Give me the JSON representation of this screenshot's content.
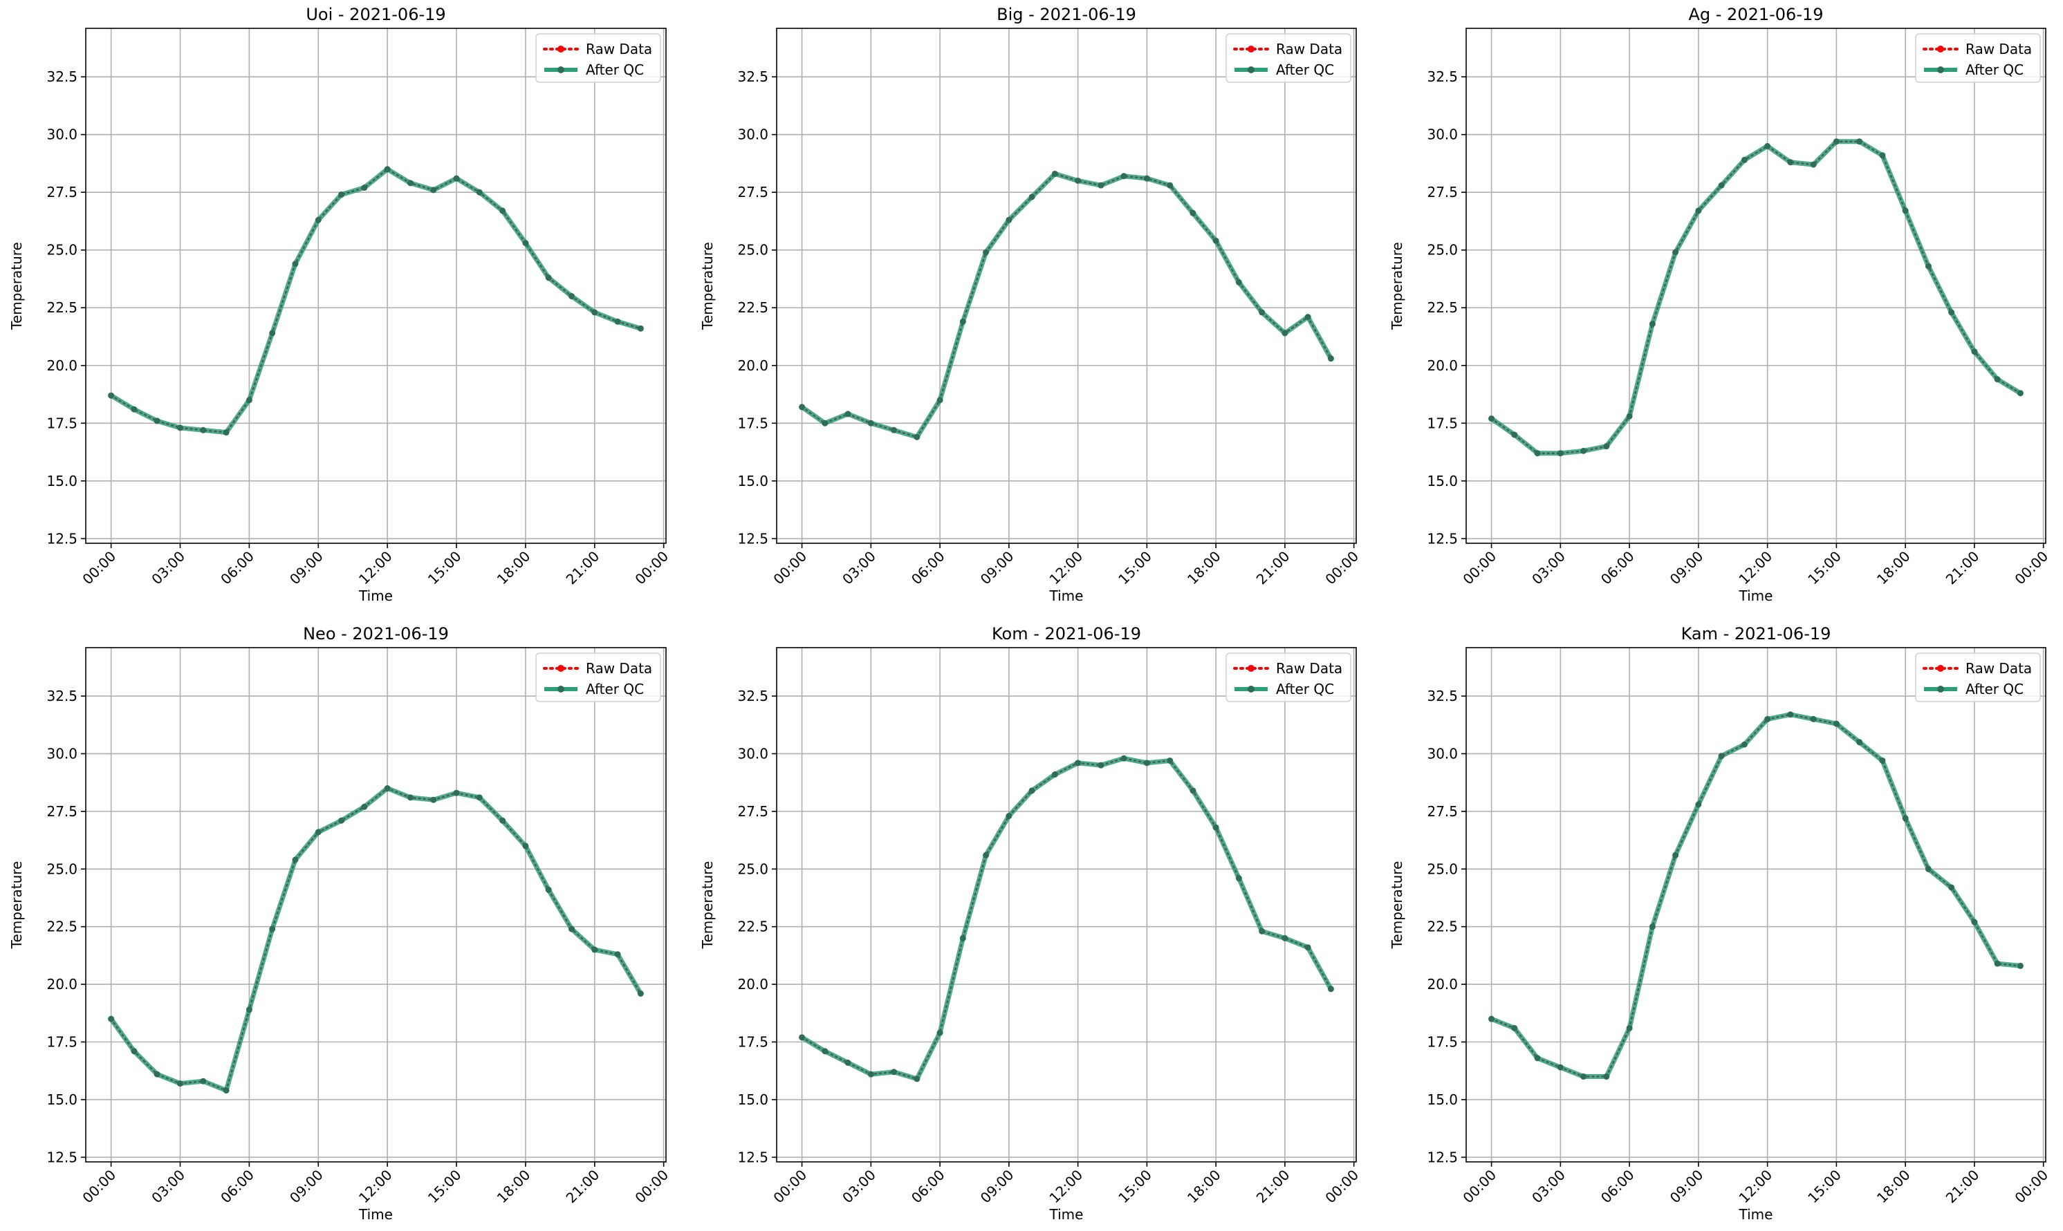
{
  "colors": {
    "raw": "#ff0000",
    "qc": "#2e9e78",
    "qc_marker": "#2e6e58",
    "grid": "#b0b0b0",
    "axis": "#000000"
  },
  "chart_data": [
    {
      "type": "line",
      "title": "Uoi - 2021-06-19",
      "xlabel": "Time",
      "ylabel": "Temperature",
      "x": [
        "00:00",
        "01:00",
        "02:00",
        "03:00",
        "04:00",
        "05:00",
        "06:00",
        "07:00",
        "08:00",
        "09:00",
        "10:00",
        "11:00",
        "12:00",
        "13:00",
        "14:00",
        "15:00",
        "16:00",
        "17:00",
        "18:00",
        "19:00",
        "20:00",
        "21:00",
        "22:00",
        "23:00"
      ],
      "xticks": [
        "00:00",
        "03:00",
        "06:00",
        "09:00",
        "12:00",
        "15:00",
        "18:00",
        "21:00",
        "00:00"
      ],
      "yticks": [
        "12.5",
        "15.0",
        "17.5",
        "20.0",
        "22.5",
        "25.0",
        "27.5",
        "30.0",
        "32.5"
      ],
      "ylim": [
        12.3,
        34.6
      ],
      "grid": true,
      "legend_position": "top-right",
      "series": [
        {
          "name": "Raw Data",
          "values": [
            18.7,
            18.1,
            17.6,
            17.3,
            17.2,
            17.1,
            18.5,
            21.4,
            24.4,
            26.3,
            27.4,
            27.7,
            28.5,
            27.9,
            27.6,
            28.1,
            27.5,
            26.7,
            25.3,
            23.8,
            23.0,
            22.3,
            21.9,
            21.6
          ]
        },
        {
          "name": "After QC",
          "values": [
            18.7,
            18.1,
            17.6,
            17.3,
            17.2,
            17.1,
            18.5,
            21.4,
            24.4,
            26.3,
            27.4,
            27.7,
            28.5,
            27.9,
            27.6,
            28.1,
            27.5,
            26.7,
            25.3,
            23.8,
            23.0,
            22.3,
            21.9,
            21.6
          ]
        }
      ]
    },
    {
      "type": "line",
      "title": "Big - 2021-06-19",
      "xlabel": "Time",
      "ylabel": "Temperature",
      "x": [
        "00:00",
        "01:00",
        "02:00",
        "03:00",
        "04:00",
        "05:00",
        "06:00",
        "07:00",
        "08:00",
        "09:00",
        "10:00",
        "11:00",
        "12:00",
        "13:00",
        "14:00",
        "15:00",
        "16:00",
        "17:00",
        "18:00",
        "19:00",
        "20:00",
        "21:00",
        "22:00",
        "23:00"
      ],
      "xticks": [
        "00:00",
        "03:00",
        "06:00",
        "09:00",
        "12:00",
        "15:00",
        "18:00",
        "21:00",
        "00:00"
      ],
      "yticks": [
        "12.5",
        "15.0",
        "17.5",
        "20.0",
        "22.5",
        "25.0",
        "27.5",
        "30.0",
        "32.5"
      ],
      "ylim": [
        12.3,
        34.6
      ],
      "grid": true,
      "legend_position": "top-right",
      "series": [
        {
          "name": "Raw Data",
          "values": [
            18.2,
            17.5,
            17.9,
            17.5,
            17.2,
            16.9,
            18.5,
            21.9,
            24.9,
            26.3,
            27.3,
            28.3,
            28.0,
            27.8,
            28.2,
            28.1,
            27.8,
            26.6,
            25.4,
            23.6,
            22.3,
            21.4,
            22.1,
            20.3
          ]
        },
        {
          "name": "After QC",
          "values": [
            18.2,
            17.5,
            17.9,
            17.5,
            17.2,
            16.9,
            18.5,
            21.9,
            24.9,
            26.3,
            27.3,
            28.3,
            28.0,
            27.8,
            28.2,
            28.1,
            27.8,
            26.6,
            25.4,
            23.6,
            22.3,
            21.4,
            22.1,
            20.3
          ]
        }
      ]
    },
    {
      "type": "line",
      "title": "Ag - 2021-06-19",
      "xlabel": "Time",
      "ylabel": "Temperature",
      "x": [
        "00:00",
        "01:00",
        "02:00",
        "03:00",
        "04:00",
        "05:00",
        "06:00",
        "07:00",
        "08:00",
        "09:00",
        "10:00",
        "11:00",
        "12:00",
        "13:00",
        "14:00",
        "15:00",
        "16:00",
        "17:00",
        "18:00",
        "19:00",
        "20:00",
        "21:00",
        "22:00",
        "23:00"
      ],
      "xticks": [
        "00:00",
        "03:00",
        "06:00",
        "09:00",
        "12:00",
        "15:00",
        "18:00",
        "21:00",
        "00:00"
      ],
      "yticks": [
        "12.5",
        "15.0",
        "17.5",
        "20.0",
        "22.5",
        "25.0",
        "27.5",
        "30.0",
        "32.5"
      ],
      "ylim": [
        12.3,
        34.6
      ],
      "grid": true,
      "legend_position": "top-right",
      "series": [
        {
          "name": "Raw Data",
          "values": [
            17.7,
            17.0,
            16.2,
            16.2,
            16.3,
            16.5,
            17.8,
            21.8,
            24.9,
            26.7,
            27.8,
            28.9,
            29.5,
            28.8,
            28.7,
            29.7,
            29.7,
            29.1,
            26.7,
            24.3,
            22.3,
            20.6,
            19.4,
            18.8
          ]
        },
        {
          "name": "After QC",
          "values": [
            17.7,
            17.0,
            16.2,
            16.2,
            16.3,
            16.5,
            17.8,
            21.8,
            24.9,
            26.7,
            27.8,
            28.9,
            29.5,
            28.8,
            28.7,
            29.7,
            29.7,
            29.1,
            26.7,
            24.3,
            22.3,
            20.6,
            19.4,
            18.8
          ]
        }
      ]
    },
    {
      "type": "line",
      "title": "Neo - 2021-06-19",
      "xlabel": "Time",
      "ylabel": "Temperature",
      "x": [
        "00:00",
        "01:00",
        "02:00",
        "03:00",
        "04:00",
        "05:00",
        "06:00",
        "07:00",
        "08:00",
        "09:00",
        "10:00",
        "11:00",
        "12:00",
        "13:00",
        "14:00",
        "15:00",
        "16:00",
        "17:00",
        "18:00",
        "19:00",
        "20:00",
        "21:00",
        "22:00",
        "23:00"
      ],
      "xticks": [
        "00:00",
        "03:00",
        "06:00",
        "09:00",
        "12:00",
        "15:00",
        "18:00",
        "21:00",
        "00:00"
      ],
      "yticks": [
        "12.5",
        "15.0",
        "17.5",
        "20.0",
        "22.5",
        "25.0",
        "27.5",
        "30.0",
        "32.5"
      ],
      "ylim": [
        12.3,
        34.6
      ],
      "grid": true,
      "legend_position": "top-right",
      "series": [
        {
          "name": "Raw Data",
          "values": [
            18.5,
            17.1,
            16.1,
            15.7,
            15.8,
            15.4,
            18.9,
            22.4,
            25.4,
            26.6,
            27.1,
            27.7,
            28.5,
            28.1,
            28.0,
            28.3,
            28.1,
            27.1,
            26.0,
            24.1,
            22.4,
            21.5,
            21.3,
            19.6
          ]
        },
        {
          "name": "After QC",
          "values": [
            18.5,
            17.1,
            16.1,
            15.7,
            15.8,
            15.4,
            18.9,
            22.4,
            25.4,
            26.6,
            27.1,
            27.7,
            28.5,
            28.1,
            28.0,
            28.3,
            28.1,
            27.1,
            26.0,
            24.1,
            22.4,
            21.5,
            21.3,
            19.6
          ]
        }
      ]
    },
    {
      "type": "line",
      "title": "Kom - 2021-06-19",
      "xlabel": "Time",
      "ylabel": "Temperature",
      "x": [
        "00:00",
        "01:00",
        "02:00",
        "03:00",
        "04:00",
        "05:00",
        "06:00",
        "07:00",
        "08:00",
        "09:00",
        "10:00",
        "11:00",
        "12:00",
        "13:00",
        "14:00",
        "15:00",
        "16:00",
        "17:00",
        "18:00",
        "19:00",
        "20:00",
        "21:00",
        "22:00",
        "23:00"
      ],
      "xticks": [
        "00:00",
        "03:00",
        "06:00",
        "09:00",
        "12:00",
        "15:00",
        "18:00",
        "21:00",
        "00:00"
      ],
      "yticks": [
        "12.5",
        "15.0",
        "17.5",
        "20.0",
        "22.5",
        "25.0",
        "27.5",
        "30.0",
        "32.5"
      ],
      "ylim": [
        12.3,
        34.6
      ],
      "grid": true,
      "legend_position": "top-right",
      "series": [
        {
          "name": "Raw Data",
          "values": [
            17.7,
            17.1,
            16.6,
            16.1,
            16.2,
            15.9,
            17.9,
            22.0,
            25.6,
            27.3,
            28.4,
            29.1,
            29.6,
            29.5,
            29.8,
            29.6,
            29.7,
            28.4,
            26.8,
            24.6,
            22.3,
            22.0,
            21.6,
            19.8
          ]
        },
        {
          "name": "After QC",
          "values": [
            17.7,
            17.1,
            16.6,
            16.1,
            16.2,
            15.9,
            17.9,
            22.0,
            25.6,
            27.3,
            28.4,
            29.1,
            29.6,
            29.5,
            29.8,
            29.6,
            29.7,
            28.4,
            26.8,
            24.6,
            22.3,
            22.0,
            21.6,
            19.8
          ]
        }
      ]
    },
    {
      "type": "line",
      "title": "Kam - 2021-06-19",
      "xlabel": "Time",
      "ylabel": "Temperature",
      "x": [
        "00:00",
        "01:00",
        "02:00",
        "03:00",
        "04:00",
        "05:00",
        "06:00",
        "07:00",
        "08:00",
        "09:00",
        "10:00",
        "11:00",
        "12:00",
        "13:00",
        "14:00",
        "15:00",
        "16:00",
        "17:00",
        "18:00",
        "19:00",
        "20:00",
        "21:00",
        "22:00",
        "23:00"
      ],
      "xticks": [
        "00:00",
        "03:00",
        "06:00",
        "09:00",
        "12:00",
        "15:00",
        "18:00",
        "21:00",
        "00:00"
      ],
      "yticks": [
        "12.5",
        "15.0",
        "17.5",
        "20.0",
        "22.5",
        "25.0",
        "27.5",
        "30.0",
        "32.5"
      ],
      "ylim": [
        12.3,
        34.6
      ],
      "grid": true,
      "legend_position": "top-right",
      "series": [
        {
          "name": "Raw Data",
          "values": [
            18.5,
            18.1,
            16.8,
            16.4,
            16.0,
            16.0,
            18.1,
            22.5,
            25.6,
            27.8,
            29.9,
            30.4,
            31.5,
            31.7,
            31.5,
            31.3,
            30.5,
            29.7,
            27.2,
            25.0,
            24.2,
            22.7,
            20.9,
            20.8
          ]
        },
        {
          "name": "After QC",
          "values": [
            18.5,
            18.1,
            16.8,
            16.4,
            16.0,
            16.0,
            18.1,
            22.5,
            25.6,
            27.8,
            29.9,
            30.4,
            31.5,
            31.7,
            31.5,
            31.3,
            30.5,
            29.7,
            27.2,
            25.0,
            24.2,
            22.7,
            20.9,
            20.8
          ]
        }
      ]
    }
  ]
}
